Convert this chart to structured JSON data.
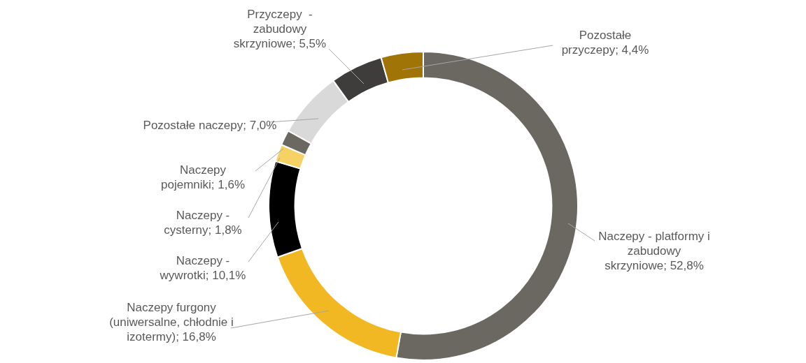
{
  "chart_data": {
    "type": "donut",
    "categories": [
      "Naczepy - platformy i zabudowy skrzyniowe",
      "Naczepy furgony (uniwersalne, chłodnie i izotermy)",
      "Naczepy - wywrotki",
      "Naczepy - cysterny",
      "Naczepy pojemniki",
      "Pozostałe naczepy",
      "Przyczepy  - zabudowy skrzyniowe",
      "Pozostałe przyczepy"
    ],
    "values": [
      52.8,
      16.8,
      10.1,
      1.8,
      1.6,
      7.0,
      5.5,
      4.4
    ],
    "value_labels": [
      "52,8%",
      "16,8%",
      "10,1%",
      "1,8%",
      "1,6%",
      "7,0%",
      "5,5%",
      "4,4%"
    ],
    "colors": [
      "#6b6862",
      "#f2b824",
      "#000000",
      "#f6d265",
      "#6b6862",
      "#d9d9d9",
      "#3e3d3b",
      "#a07407"
    ],
    "legend": false
  }
}
